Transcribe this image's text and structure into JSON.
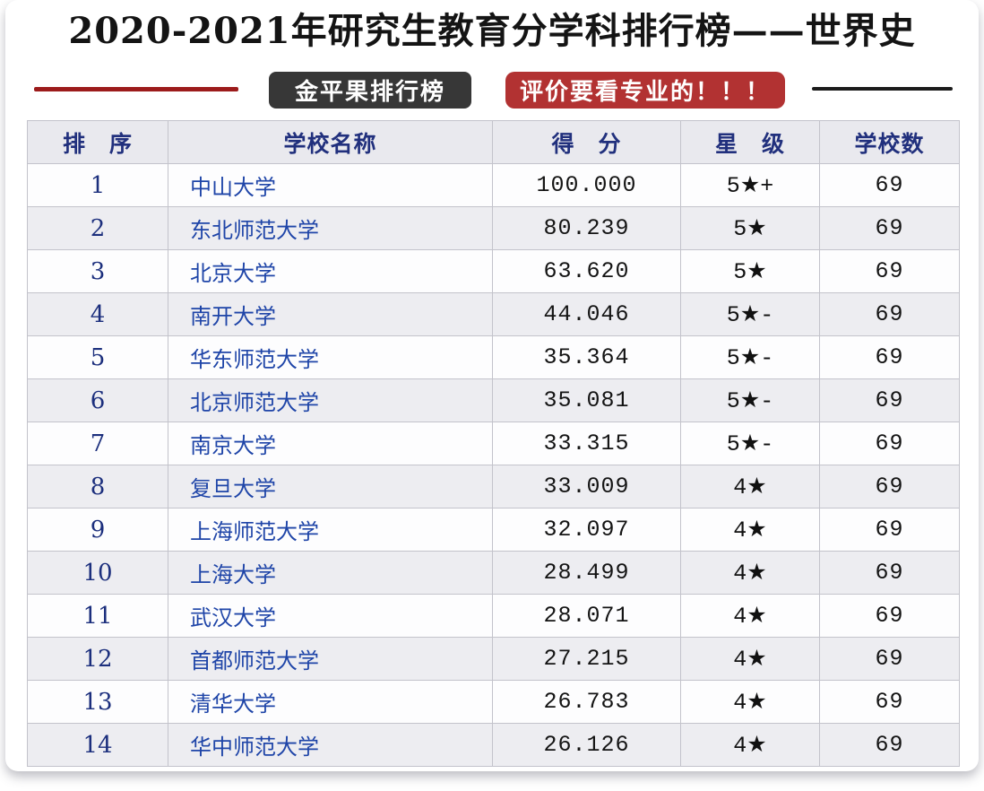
{
  "page": {
    "title": "2020-2021年研究生教育分学科排行榜——世界史"
  },
  "badges": {
    "dark_label": "金平果排行榜",
    "red_label": "评价要看专业的！！！"
  },
  "colors": {
    "accent_red_line": "#9c1b1b",
    "accent_black_line": "#1b1b1b",
    "badge_dark_bg": "#373737",
    "badge_red_bg": "#b23232",
    "header_text": "#21307d",
    "school_link_blue": "#1f45a8",
    "even_row_bg": "#ededf1"
  },
  "table": {
    "columns": [
      "排　序",
      "学校名称",
      "得　分",
      "星　级",
      "学校数"
    ],
    "rows": [
      {
        "rank": "1",
        "school": "中山大学",
        "score": "100.000",
        "star": "5★+",
        "count": "69"
      },
      {
        "rank": "2",
        "school": "东北师范大学",
        "score": "80.239",
        "star": "5★",
        "count": "69"
      },
      {
        "rank": "3",
        "school": "北京大学",
        "score": "63.620",
        "star": "5★",
        "count": "69"
      },
      {
        "rank": "4",
        "school": "南开大学",
        "score": "44.046",
        "star": "5★-",
        "count": "69"
      },
      {
        "rank": "5",
        "school": "华东师范大学",
        "score": "35.364",
        "star": "5★-",
        "count": "69"
      },
      {
        "rank": "6",
        "school": "北京师范大学",
        "score": "35.081",
        "star": "5★-",
        "count": "69"
      },
      {
        "rank": "7",
        "school": "南京大学",
        "score": "33.315",
        "star": "5★-",
        "count": "69"
      },
      {
        "rank": "8",
        "school": "复旦大学",
        "score": "33.009",
        "star": "4★",
        "count": "69"
      },
      {
        "rank": "9",
        "school": "上海师范大学",
        "score": "32.097",
        "star": "4★",
        "count": "69"
      },
      {
        "rank": "10",
        "school": "上海大学",
        "score": "28.499",
        "star": "4★",
        "count": "69"
      },
      {
        "rank": "11",
        "school": "武汉大学",
        "score": "28.071",
        "star": "4★",
        "count": "69"
      },
      {
        "rank": "12",
        "school": "首都师范大学",
        "score": "27.215",
        "star": "4★",
        "count": "69"
      },
      {
        "rank": "13",
        "school": "清华大学",
        "score": "26.783",
        "star": "4★",
        "count": "69"
      },
      {
        "rank": "14",
        "school": "华中师范大学",
        "score": "26.126",
        "star": "4★",
        "count": "69"
      }
    ]
  }
}
